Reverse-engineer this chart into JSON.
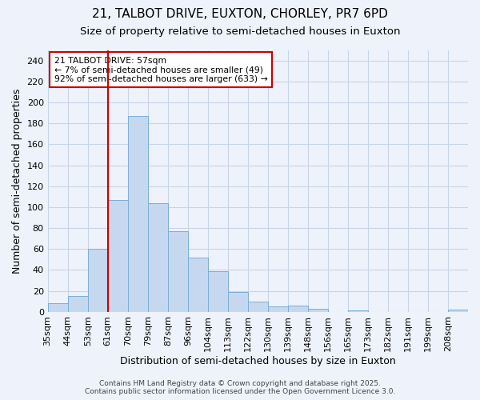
{
  "title_line1": "21, TALBOT DRIVE, EUXTON, CHORLEY, PR7 6PD",
  "title_line2": "Size of property relative to semi-detached houses in Euxton",
  "xlabel": "Distribution of semi-detached houses by size in Euxton",
  "ylabel": "Number of semi-detached properties",
  "categories": [
    "35sqm",
    "44sqm",
    "53sqm",
    "61sqm",
    "70sqm",
    "79sqm",
    "87sqm",
    "96sqm",
    "104sqm",
    "113sqm",
    "122sqm",
    "130sqm",
    "139sqm",
    "148sqm",
    "156sqm",
    "165sqm",
    "173sqm",
    "182sqm",
    "191sqm",
    "199sqm",
    "208sqm"
  ],
  "values": [
    8,
    15,
    60,
    107,
    187,
    104,
    77,
    52,
    39,
    19,
    10,
    5,
    6,
    3,
    0,
    1,
    0,
    0,
    0,
    0,
    2
  ],
  "bar_color": "#c5d8f0",
  "bar_edge_color": "#7aafd4",
  "grid_color": "#c8d4e8",
  "background_color": "#eef2fa",
  "vline_color": "#cc0000",
  "vline_x": 3.0,
  "annotation_text": "21 TALBOT DRIVE: 57sqm\n← 7% of semi-detached houses are smaller (49)\n92% of semi-detached houses are larger (633) →",
  "annotation_box_color": "#ffffff",
  "annotation_box_edge": "#cc0000",
  "ylim": [
    0,
    250
  ],
  "yticks": [
    0,
    20,
    40,
    60,
    80,
    100,
    120,
    140,
    160,
    180,
    200,
    220,
    240
  ],
  "footer_text": "Contains HM Land Registry data © Crown copyright and database right 2025.\nContains public sector information licensed under the Open Government Licence 3.0.",
  "title_fontsize": 11,
  "subtitle_fontsize": 9.5,
  "tick_fontsize": 8,
  "label_fontsize": 9,
  "footer_fontsize": 6.5
}
